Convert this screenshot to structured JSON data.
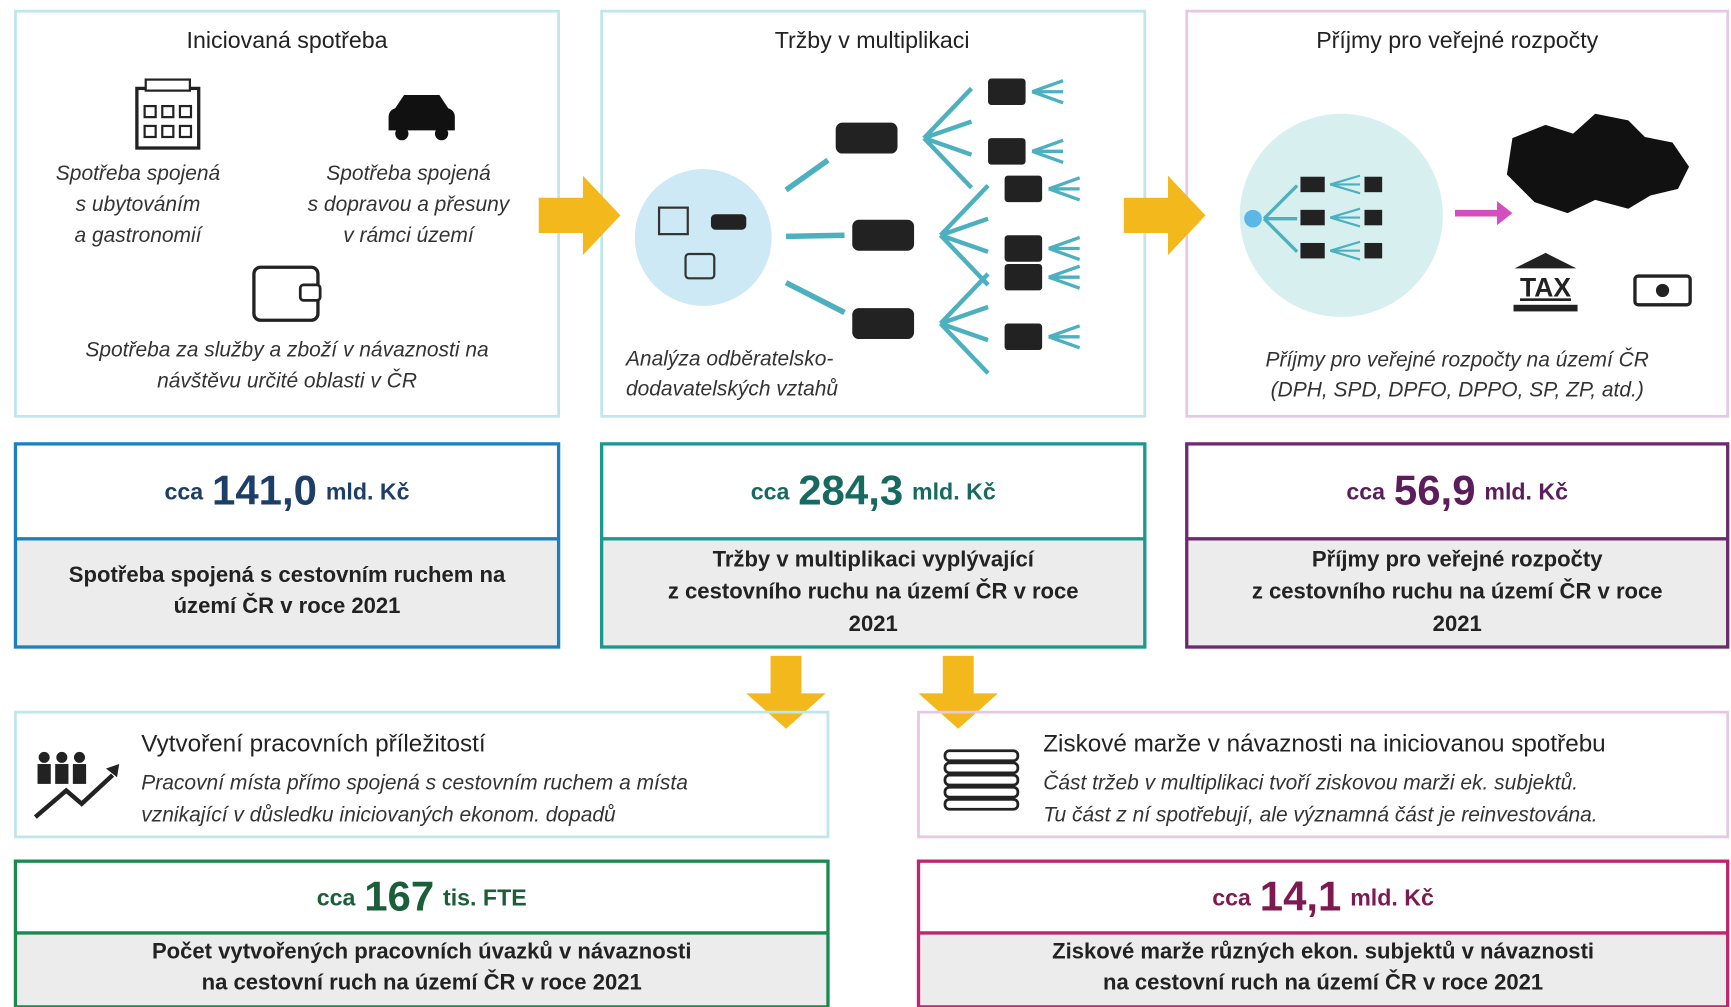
{
  "top_panels": [
    {
      "title": "Iniciovaná spotřeba",
      "captions": [
        {
          "lines": [
            "Spotřeba spojená",
            "s ubytováním",
            "a gastronomií"
          ]
        },
        {
          "lines": [
            "Spotřeba spojená",
            "s dopravou a přesuny",
            "v rámci území"
          ]
        },
        {
          "lines": [
            "Spotřeba za služby a zboží v návaznosti na",
            "návštěvu určité oblasti v ČR"
          ]
        }
      ]
    },
    {
      "title": "Tržby v multiplikaci",
      "captions": [
        {
          "lines": [
            "Analýza odběratelsko-",
            "dodavatelských vztahů"
          ]
        }
      ]
    },
    {
      "title": "Příjmy pro veřejné rozpočty",
      "icon_label": "TAX",
      "captions": [
        {
          "lines": [
            "Příjmy pro veřejné rozpočty na území ČR",
            "(DPH, SPD, DPFO, DPPO, SP, ZP, atd.)"
          ]
        }
      ]
    }
  ],
  "top_values": [
    {
      "prefix": "cca",
      "value": "141,0",
      "unit": "mld. Kč",
      "description": [
        "Spotřeba spojená s cestovním ruchem na",
        "území ČR v roce 2021"
      ]
    },
    {
      "prefix": "cca",
      "value": "284,3",
      "unit": "mld. Kč",
      "description": [
        "Tržby v multiplikaci vyplývající",
        "z cestovního ruchu na území ČR v roce",
        "2021"
      ]
    },
    {
      "prefix": "cca",
      "value": "56,9",
      "unit": "mld. Kč",
      "description": [
        "Příjmy pro veřejné rozpočty",
        "z cestovního ruchu na území ČR v roce",
        "2021"
      ]
    }
  ],
  "bottom_panels": [
    {
      "title": "Vytvoření pracovních příležitostí",
      "description": [
        "Pracovní místa přímo spojená s cestovním ruchem a místa",
        "vznikající v důsledku iniciovaných ekonom. dopadů"
      ]
    },
    {
      "title": "Ziskové marže v návaznosti na iniciovanou spotřebu",
      "description": [
        "Část tržeb v multiplikaci tvoří ziskovou marži ek. subjektů.",
        "Tu část z ní spotřebují, ale významná část je reinvestována."
      ]
    }
  ],
  "bottom_values": [
    {
      "prefix": "cca",
      "value": "167",
      "unit": "tis. FTE",
      "description": [
        "Počet vytvořených pracovních úvazků v návaznosti",
        "na cestovní ruch na území ČR v roce 2021"
      ]
    },
    {
      "prefix": "cca",
      "value": "14,1",
      "unit": "mld. Kč",
      "description": [
        "Ziskové marže různých ekon. subjektů v návaznosti",
        "na cestovní ruch na území ČR v roce 2021"
      ]
    }
  ]
}
